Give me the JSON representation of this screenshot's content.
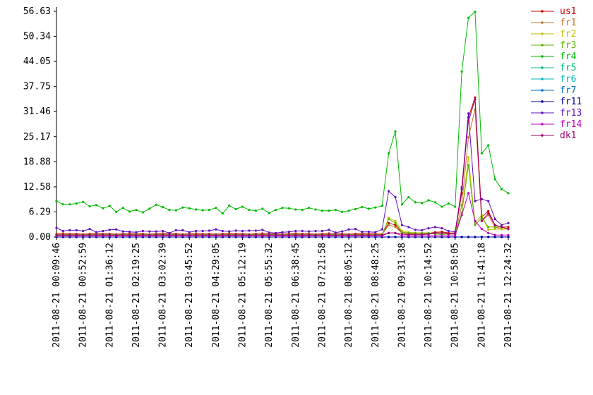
{
  "chart_data": {
    "type": "line",
    "categories": [
      "2011-08-21 00:09:46",
      null,
      null,
      null,
      "2011-08-21 00:52:59",
      null,
      null,
      null,
      "2011-08-21 01:36:12",
      null,
      null,
      null,
      "2011-08-21 02:19:25",
      null,
      null,
      null,
      "2011-08-21 03:02:39",
      null,
      null,
      null,
      "2011-08-21 03:45:52",
      null,
      null,
      null,
      "2011-08-21 04:29:05",
      null,
      null,
      null,
      "2011-08-21 05:12:19",
      null,
      null,
      null,
      "2011-08-21 05:55:32",
      null,
      null,
      null,
      "2011-08-21 06:38:45",
      null,
      null,
      null,
      "2011-08-21 07:21:58",
      null,
      null,
      null,
      "2011-08-21 08:05:12",
      null,
      null,
      null,
      "2011-08-21 08:48:25",
      null,
      null,
      null,
      "2011-08-21 09:31:38",
      null,
      null,
      null,
      "2011-08-21 10:14:52",
      null,
      null,
      null,
      "2011-08-21 10:58:05",
      null,
      null,
      null,
      "2011-08-21 11:41:18",
      null,
      null,
      null,
      "2011-08-21 12:24:32"
    ],
    "ylim": [
      0,
      56.63
    ],
    "yticks": [
      {
        "value": 0,
        "label": "0.00"
      },
      6.29,
      12.58,
      18.88,
      25.17,
      31.46,
      37.75,
      44.05,
      50.34,
      56.63
    ],
    "grid": false,
    "legend": "right",
    "series": [
      {
        "name": "us1",
        "color": "#cc0000",
        "values": [
          0.8,
          0.9,
          0.8,
          0.8,
          0.7,
          0.8,
          0.9,
          0.8,
          0.8,
          0.7,
          0.8,
          0.9,
          0.8,
          0.8,
          0.7,
          0.8,
          0.9,
          0.8,
          0.8,
          0.7,
          0.8,
          0.9,
          0.8,
          0.8,
          0.7,
          0.8,
          0.9,
          0.8,
          0.8,
          0.7,
          0.8,
          0.9,
          0.8,
          0.8,
          0.7,
          0.8,
          0.9,
          0.8,
          0.8,
          0.7,
          0.8,
          0.9,
          0.8,
          0.8,
          0.7,
          0.8,
          0.9,
          0.8,
          0.8,
          0.7,
          3.5,
          3,
          1,
          1,
          0.8,
          0.8,
          0.9,
          1.2,
          1.3,
          1,
          1,
          11,
          30,
          35,
          5,
          6.5,
          3,
          2.5,
          2.5
        ]
      },
      {
        "name": "fr1",
        "color": "#c07830",
        "values": [
          0.6,
          0.6,
          0.7,
          0.6,
          0.6,
          0.6,
          0.7,
          0.6,
          0.6,
          0.6,
          0.6,
          0.6,
          0.7,
          0.6,
          0.6,
          0.6,
          0.7,
          0.6,
          0.6,
          0.6,
          0.6,
          0.6,
          0.7,
          0.6,
          0.6,
          0.6,
          0.7,
          0.6,
          0.6,
          0.6,
          0.6,
          0.6,
          0.7,
          0.6,
          0.6,
          0.6,
          0.7,
          0.6,
          0.6,
          0.6,
          0.6,
          0.6,
          0.7,
          0.6,
          0.6,
          0.6,
          0.7,
          0.6,
          0.6,
          0.6,
          3,
          2.5,
          1,
          0.8,
          0.8,
          0.8,
          0.8,
          0.8,
          0.7,
          0.7,
          0.7,
          8,
          25,
          32,
          4,
          5.5,
          2.5,
          2,
          2
        ]
      },
      {
        "name": "fr2",
        "color": "#c0c000",
        "values": [
          0.4,
          0.4,
          0.4,
          0.4,
          0.4,
          0.4,
          0.4,
          0.4,
          0.4,
          0.4,
          0.4,
          0.4,
          0.4,
          0.4,
          0.4,
          0.4,
          0.4,
          0.4,
          0.4,
          0.4,
          0.4,
          0.4,
          0.4,
          0.4,
          0.4,
          0.4,
          0.4,
          0.4,
          0.4,
          0.4,
          0.4,
          0.4,
          0.4,
          0.4,
          0.4,
          0.4,
          0.4,
          0.4,
          0.4,
          0.4,
          0.4,
          0.4,
          0.4,
          0.4,
          0.4,
          0.4,
          0.4,
          0.4,
          0.4,
          0.4,
          4.8,
          4,
          1.5,
          1.2,
          1,
          1,
          1,
          0.8,
          0.6,
          0.8,
          0.8,
          6,
          20,
          3.5,
          5.5,
          1.8,
          2,
          2,
          2
        ]
      },
      {
        "name": "fr3",
        "color": "#60b000",
        "values": [
          0.6,
          0.6,
          0.6,
          0.6,
          0.6,
          0.6,
          0.6,
          0.6,
          0.6,
          0.6,
          0.6,
          0.6,
          0.6,
          0.6,
          0.6,
          0.6,
          0.6,
          0.6,
          0.6,
          0.6,
          0.6,
          0.6,
          0.6,
          0.6,
          0.6,
          0.6,
          0.6,
          0.6,
          0.6,
          0.6,
          0.6,
          0.6,
          0.6,
          0.6,
          0.6,
          0.6,
          0.6,
          0.6,
          0.6,
          0.6,
          0.6,
          0.6,
          0.6,
          0.6,
          0.6,
          0.6,
          0.6,
          0.6,
          0.6,
          0.6,
          4.5,
          3.5,
          1.2,
          1,
          1,
          1,
          1,
          0.8,
          0.6,
          0.8,
          0.8,
          6,
          18,
          3,
          4.8,
          2.5,
          2.5,
          2.5,
          2
        ]
      },
      {
        "name": "fr4",
        "color": "#00bb00",
        "values": [
          9,
          8.2,
          8.2,
          8.4,
          8.8,
          7.7,
          8,
          7.2,
          7.8,
          6.3,
          7.3,
          6.4,
          6.8,
          6.2,
          7.1,
          8.1,
          7.5,
          6.8,
          6.7,
          7.4,
          7.2,
          6.9,
          6.7,
          6.8,
          7.3,
          5.9,
          7.9,
          7,
          7.6,
          6.8,
          6.6,
          7.1,
          6,
          6.8,
          7.3,
          7.2,
          6.9,
          6.8,
          7.3,
          6.9,
          6.6,
          6.6,
          6.8,
          6.3,
          6.6,
          7,
          7.5,
          7.1,
          7.4,
          7.8,
          21,
          26.5,
          8.2,
          10,
          8.7,
          8.5,
          9.2,
          8.7,
          7.6,
          8.4,
          7.6,
          41.5,
          55,
          56.5,
          21,
          23,
          14.5,
          12,
          11
        ]
      },
      {
        "name": "fr5",
        "color": "#00c070",
        "values": [
          0,
          0,
          0,
          0,
          0,
          0,
          0,
          0,
          0,
          0,
          0,
          0,
          0,
          0,
          0,
          0,
          0,
          0,
          0,
          0,
          0,
          0,
          0,
          0,
          0,
          0,
          0,
          0,
          0,
          0,
          0,
          0,
          0,
          0,
          0,
          0,
          0,
          0,
          0,
          0,
          0,
          0,
          0,
          0,
          0,
          0,
          0,
          0,
          0,
          0,
          0,
          0,
          0,
          0,
          0,
          0,
          0,
          0,
          0,
          0,
          0,
          0,
          0,
          0,
          0,
          0,
          0,
          0,
          0
        ]
      },
      {
        "name": "fr6",
        "color": "#00b8c0",
        "values": [
          0,
          0,
          0,
          0,
          0,
          0,
          0,
          0,
          0,
          0,
          0,
          0,
          0,
          0,
          0,
          0,
          0,
          0,
          0,
          0,
          0,
          0,
          0,
          0,
          0,
          0,
          0,
          0,
          0,
          0,
          0,
          0,
          0,
          0,
          0,
          0,
          0,
          0,
          0,
          0,
          0,
          0,
          0,
          0,
          0,
          0,
          0,
          0,
          0,
          0,
          0,
          0,
          0,
          0,
          0,
          0,
          0,
          0,
          0,
          0,
          0,
          0,
          0,
          0,
          0,
          0,
          0,
          0,
          0
        ]
      },
      {
        "name": "fr7",
        "color": "#0070c0",
        "values": [
          0,
          0,
          0,
          0,
          0,
          0,
          0,
          0,
          0,
          0,
          0,
          0,
          0,
          0,
          0,
          0,
          0,
          0,
          0,
          0,
          0,
          0,
          0,
          0,
          0,
          0,
          0,
          0,
          0,
          0,
          0,
          0,
          0,
          0,
          0,
          0,
          0,
          0,
          0,
          0,
          0,
          0,
          0,
          0,
          0,
          0,
          0,
          0,
          0,
          0,
          0,
          0,
          0,
          0,
          0,
          0,
          0,
          0,
          0,
          0,
          0,
          0,
          0,
          0,
          0,
          0,
          0,
          0,
          0
        ]
      },
      {
        "name": "fr11",
        "color": "#0000a0",
        "values": [
          0,
          0,
          0,
          0,
          0,
          0,
          0,
          0,
          0,
          0,
          0,
          0,
          0,
          0,
          0,
          0,
          0,
          0,
          0,
          0,
          0,
          0,
          0,
          0,
          0,
          0,
          0,
          0,
          0,
          0,
          0,
          0,
          0,
          0,
          0,
          0,
          0,
          0,
          0,
          0,
          0,
          0,
          0,
          0,
          0,
          0,
          0,
          0,
          0,
          0,
          0,
          0,
          0,
          0,
          0,
          0,
          0,
          0,
          0,
          0,
          0,
          0,
          0,
          0,
          0,
          0,
          0,
          0,
          0
        ]
      },
      {
        "name": "fr13",
        "color": "#6010c0",
        "values": [
          2.3,
          1.5,
          1.7,
          1.7,
          1.5,
          2,
          1.2,
          1.5,
          1.8,
          1.9,
          1.4,
          1.3,
          1.2,
          1.5,
          1.4,
          1.4,
          1.5,
          1,
          1.7,
          1.7,
          1.2,
          1.5,
          1.5,
          1.6,
          1.9,
          1.5,
          1.4,
          1.6,
          1.5,
          1.6,
          1.6,
          1.8,
          1.1,
          1,
          1.2,
          1.3,
          1.5,
          1.5,
          1.4,
          1.5,
          1.5,
          1.8,
          1.1,
          1.4,
          1.9,
          2,
          1.3,
          1.3,
          1.2,
          1.9,
          11.5,
          10,
          3,
          2.5,
          1.8,
          1.7,
          2.2,
          2.5,
          2.2,
          1.5,
          1.3,
          12,
          31,
          9,
          9.5,
          9,
          4.5,
          3,
          3.5
        ]
      },
      {
        "name": "fr14",
        "color": "#c000c0",
        "values": [
          0.3,
          0.3,
          0.3,
          0.3,
          0.3,
          0.3,
          0.3,
          0.3,
          0.3,
          0.3,
          0.3,
          0.3,
          0.3,
          0.3,
          0.3,
          0.3,
          0.3,
          0.3,
          0.3,
          0.3,
          0.3,
          0.3,
          0.3,
          0.3,
          0.3,
          0.3,
          0.3,
          0.3,
          0.3,
          0.3,
          0.3,
          0.3,
          0.3,
          0.3,
          0.3,
          0.3,
          0.3,
          0.3,
          0.3,
          0.3,
          0.3,
          0.3,
          0.3,
          0.3,
          0.3,
          0.3,
          0.3,
          0.3,
          0.3,
          0.3,
          1,
          1,
          0.3,
          0.3,
          0.3,
          0.3,
          0.3,
          0.3,
          0.3,
          0.3,
          0.3,
          5.5,
          11,
          4,
          2,
          1,
          0.5,
          0.5,
          0.5
        ]
      },
      {
        "name": "dk1",
        "color": "#a00070",
        "values": [
          0.5,
          0.5,
          0.5,
          0.5,
          0.5,
          0.5,
          0.5,
          0.5,
          0.5,
          0.5,
          0.5,
          0.5,
          0.5,
          0.5,
          0.5,
          0.5,
          0.5,
          0.5,
          0.5,
          0.5,
          0.5,
          0.5,
          0.5,
          0.5,
          0.5,
          0.5,
          0.5,
          0.5,
          0.5,
          0.5,
          0.5,
          0.5,
          0.5,
          0.5,
          0.5,
          0.5,
          0.5,
          0.5,
          0.5,
          0.5,
          0.5,
          0.5,
          0.5,
          0.5,
          0.5,
          0.5,
          0.5,
          0.5,
          0.5,
          0.5,
          1,
          1,
          0.7,
          0.6,
          0.6,
          0.6,
          0.7,
          1,
          1,
          0.8,
          0.8,
          12.5,
          29,
          34.5,
          4,
          6,
          3,
          2.5,
          2
        ]
      }
    ]
  }
}
